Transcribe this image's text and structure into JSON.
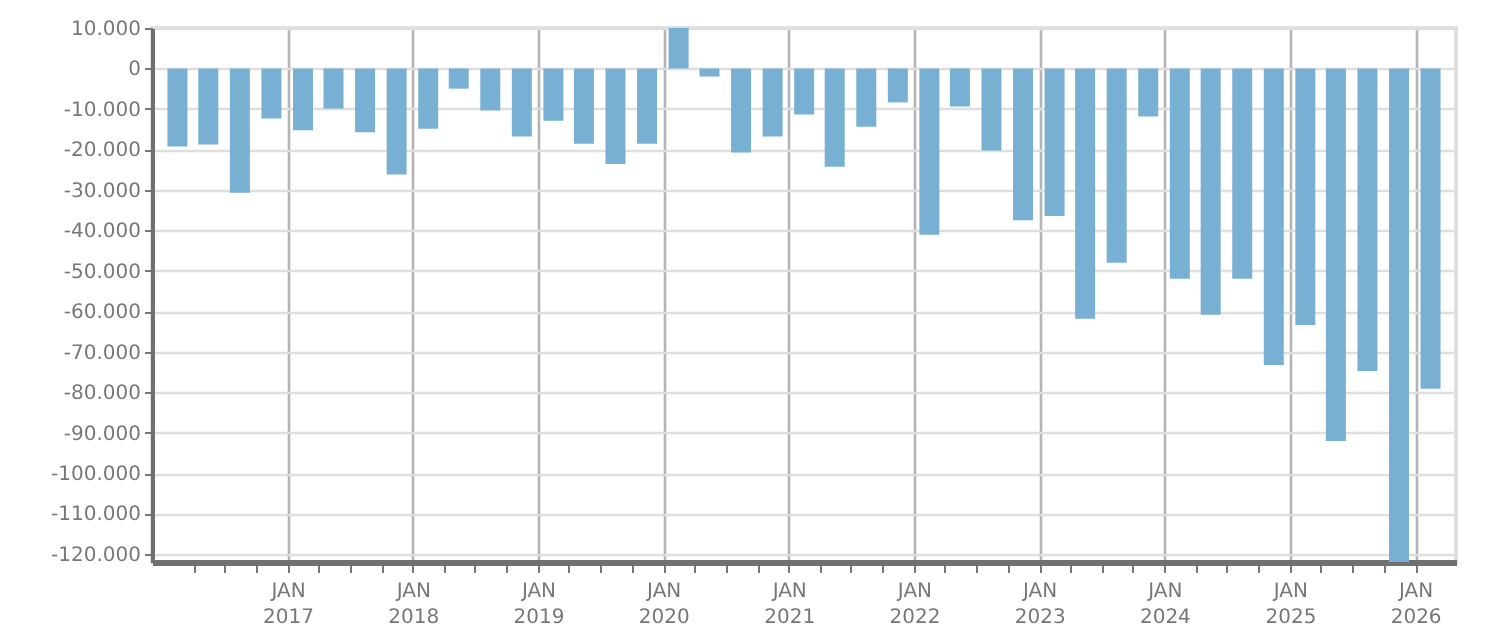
{
  "chart_data": {
    "type": "bar",
    "color": "#78b0d4",
    "grid": true,
    "x": [
      "2016-02-15",
      "2016-05-15",
      "2016-08-15",
      "2016-11-15",
      "2017-02-15",
      "2017-05-15",
      "2017-08-15",
      "2017-11-15",
      "2018-02-15",
      "2018-05-15",
      "2018-08-15",
      "2018-11-15",
      "2019-02-15",
      "2019-05-15",
      "2019-08-15",
      "2019-11-15",
      "2020-02-15",
      "2020-05-15",
      "2020-08-15",
      "2020-11-15",
      "2021-02-15",
      "2021-05-15",
      "2021-08-15",
      "2021-11-15",
      "2022-02-15",
      "2022-05-15",
      "2022-08-15",
      "2022-11-15",
      "2023-02-15",
      "2023-05-15",
      "2023-08-15",
      "2023-11-15",
      "2024-02-15",
      "2024-05-15",
      "2024-08-15",
      "2024-11-15",
      "2025-02-15",
      "2025-05-15",
      "2025-08-15",
      "2025-11-15",
      "2026-02-15"
    ],
    "values": [
      -19300,
      -18800,
      -30700,
      -12400,
      -15300,
      -9900,
      -15800,
      -26200,
      -14900,
      -5000,
      -10400,
      -16800,
      -12900,
      -18600,
      -23600,
      -18600,
      10000,
      -2000,
      -20800,
      -16800,
      -11400,
      -24300,
      -14400,
      -8400,
      -41100,
      -9400,
      -20300,
      -37500,
      -36500,
      -61900,
      -48000,
      -11900,
      -52000,
      -60900,
      -52000,
      -73300,
      -63400,
      -92100,
      -74800,
      -122000,
      -79200
    ],
    "xlim": [
      "2016-01-01",
      "2026-04-01"
    ],
    "xticks": [
      {
        "value": "2016-04-01",
        "label": null
      },
      {
        "value": "2016-07-01",
        "label": null
      },
      {
        "value": "2016-10-01",
        "label": null
      },
      {
        "value": "2017-01-01",
        "label": "JAN 2017"
      },
      {
        "value": "2017-04-01",
        "label": null
      },
      {
        "value": "2017-07-01",
        "label": null
      },
      {
        "value": "2017-10-01",
        "label": null
      },
      {
        "value": "2018-01-01",
        "label": "JAN 2018"
      },
      {
        "value": "2018-04-01",
        "label": null
      },
      {
        "value": "2018-07-01",
        "label": null
      },
      {
        "value": "2018-10-01",
        "label": null
      },
      {
        "value": "2019-01-01",
        "label": "JAN 2019"
      },
      {
        "value": "2019-04-01",
        "label": null
      },
      {
        "value": "2019-07-01",
        "label": null
      },
      {
        "value": "2019-10-01",
        "label": null
      },
      {
        "value": "2020-01-01",
        "label": "JAN 2020"
      },
      {
        "value": "2020-04-01",
        "label": null
      },
      {
        "value": "2020-07-01",
        "label": null
      },
      {
        "value": "2020-10-01",
        "label": null
      },
      {
        "value": "2021-01-01",
        "label": "JAN 2021"
      },
      {
        "value": "2021-04-01",
        "label": null
      },
      {
        "value": "2021-07-01",
        "label": null
      },
      {
        "value": "2021-10-01",
        "label": null
      },
      {
        "value": "2022-01-01",
        "label": "JAN 2022"
      },
      {
        "value": "2022-04-01",
        "label": null
      },
      {
        "value": "2022-07-01",
        "label": null
      },
      {
        "value": "2022-10-01",
        "label": null
      },
      {
        "value": "2023-01-01",
        "label": "JAN 2023"
      },
      {
        "value": "2023-04-01",
        "label": null
      },
      {
        "value": "2023-07-01",
        "label": null
      },
      {
        "value": "2023-10-01",
        "label": null
      },
      {
        "value": "2024-01-01",
        "label": "JAN 2024"
      },
      {
        "value": "2024-04-01",
        "label": null
      },
      {
        "value": "2024-07-01",
        "label": null
      },
      {
        "value": "2024-10-01",
        "label": null
      },
      {
        "value": "2025-01-01",
        "label": "JAN 2025"
      },
      {
        "value": "2025-04-01",
        "label": null
      },
      {
        "value": "2025-07-01",
        "label": null
      },
      {
        "value": "2025-10-01",
        "label": null
      },
      {
        "value": "2026-01-01",
        "label": "JAN 2026"
      }
    ],
    "ylim": [
      -122000,
      10000
    ],
    "yticks": [
      {
        "value": 10000,
        "label": "10.000"
      },
      0,
      {
        "value": -10000,
        "label": "-10.000"
      },
      {
        "value": -20000,
        "label": "-20.000"
      },
      {
        "value": -30000,
        "label": "-30.000"
      },
      {
        "value": -40000,
        "label": "-40.000"
      },
      {
        "value": -50000,
        "label": "-50.000"
      },
      {
        "value": -60000,
        "label": "-60.000"
      },
      {
        "value": -70000,
        "label": "-70.000"
      },
      {
        "value": -80000,
        "label": "-80.000"
      },
      {
        "value": -90000,
        "label": "-90.000"
      },
      {
        "value": -100000,
        "label": "-100.000"
      },
      {
        "value": -110000,
        "label": "-110.000"
      },
      {
        "value": -120000,
        "label": "-120.000"
      }
    ]
  }
}
